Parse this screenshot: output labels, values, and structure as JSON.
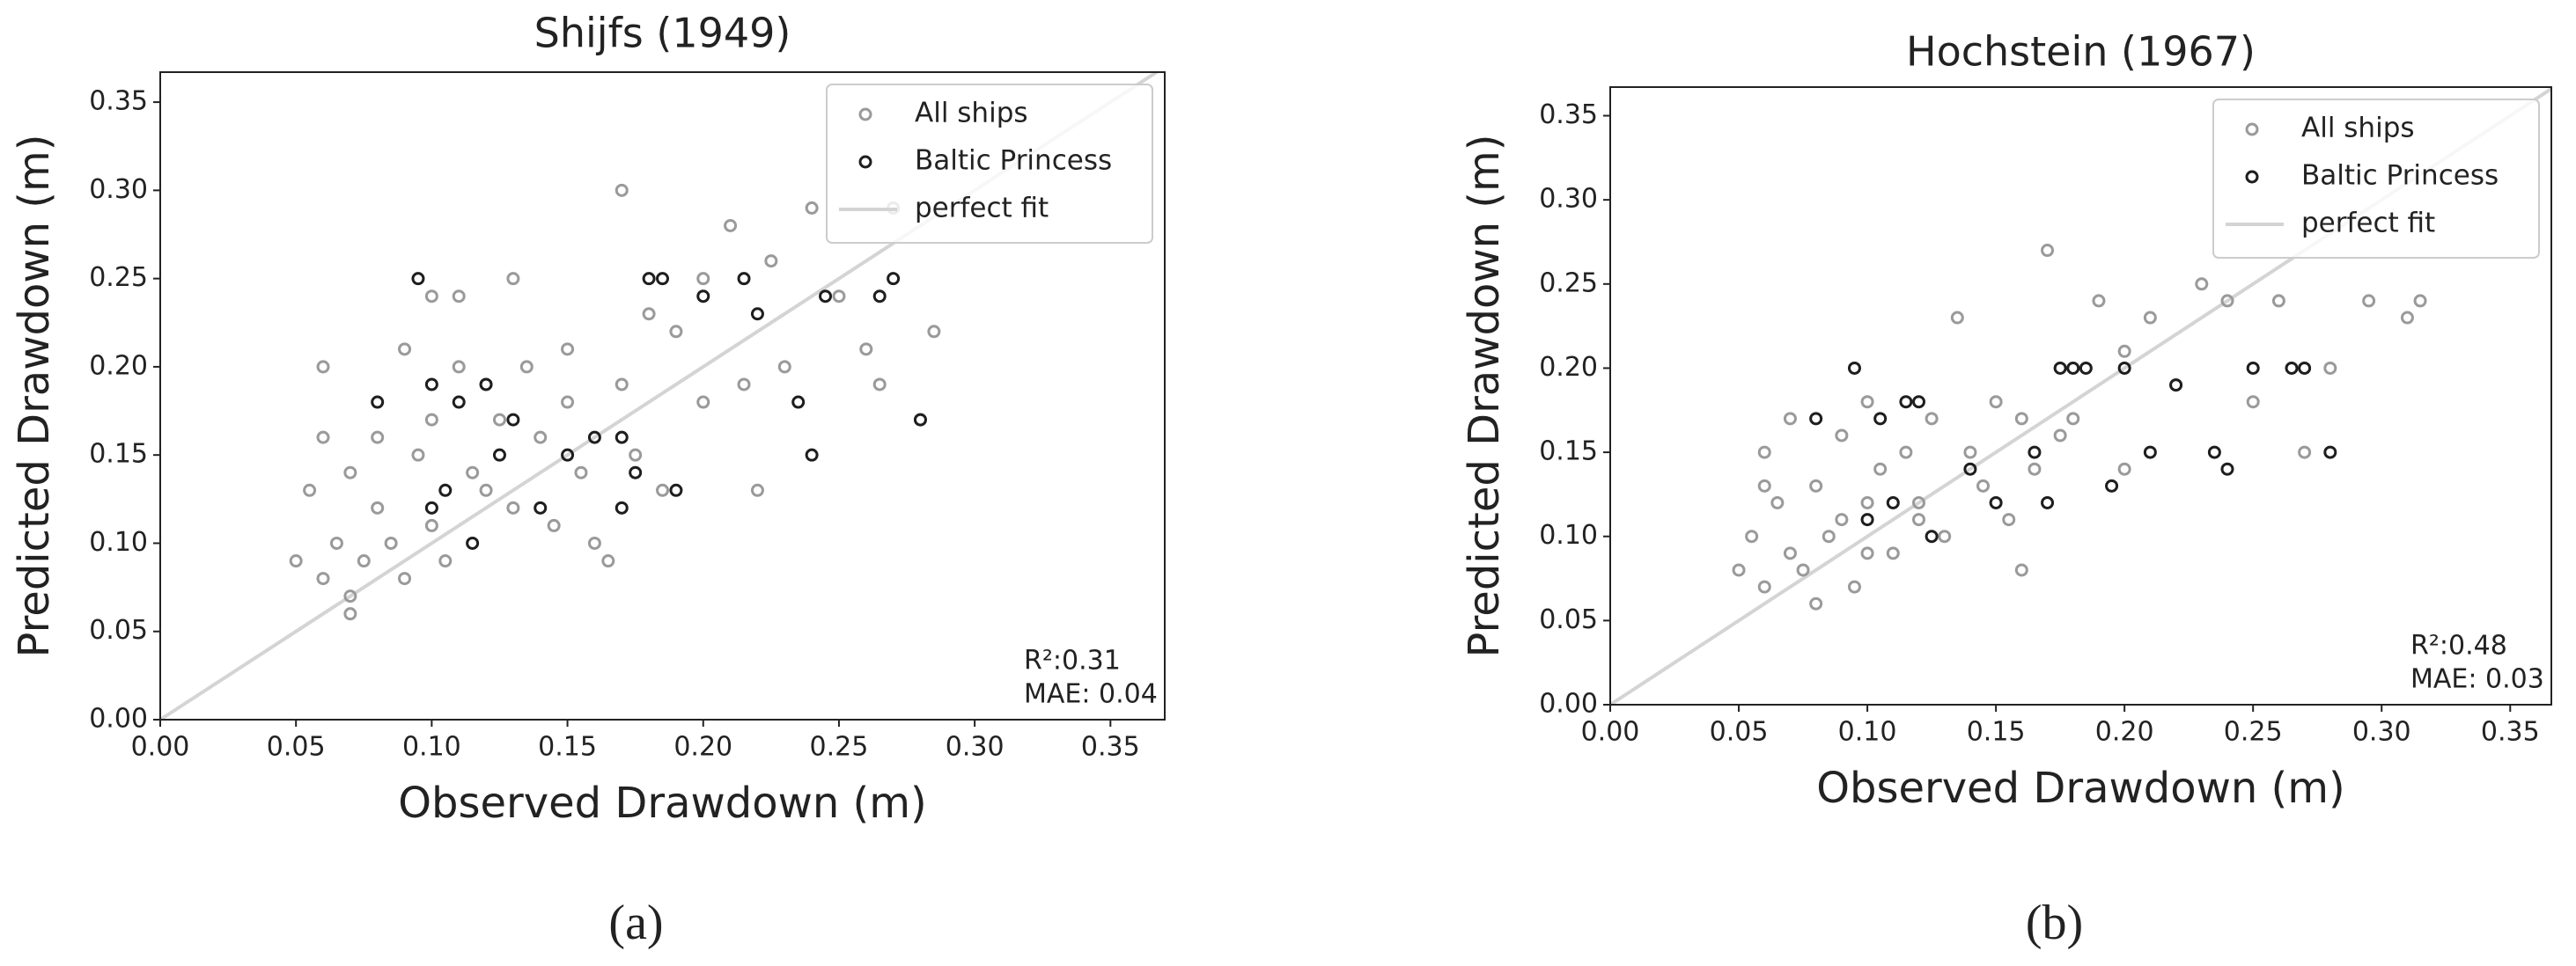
{
  "chart_data": [
    {
      "type": "scatter",
      "title": "Shijfs (1949)",
      "x_label": "Observed Drawdown (m)",
      "y_label": "Predicted Drawdown (m)",
      "xlim": [
        0,
        0.37
      ],
      "ylim": [
        0,
        0.367
      ],
      "xticks": [
        {
          "value": 0,
          "label": "0.00"
        },
        {
          "value": 0.05,
          "label": "0.05"
        },
        {
          "value": 0.1,
          "label": "0.10"
        },
        {
          "value": 0.15,
          "label": "0.15"
        },
        {
          "value": 0.2,
          "label": "0.20"
        },
        {
          "value": 0.25,
          "label": "0.25"
        },
        {
          "value": 0.3,
          "label": "0.30"
        },
        {
          "value": 0.35,
          "label": "0.35"
        }
      ],
      "yticks": [
        {
          "value": 0,
          "label": "0.00"
        },
        {
          "value": 0.05,
          "label": "0.05"
        },
        {
          "value": 0.1,
          "label": "0.10"
        },
        {
          "value": 0.15,
          "label": "0.15"
        },
        {
          "value": 0.2,
          "label": "0.20"
        },
        {
          "value": 0.25,
          "label": "0.25"
        },
        {
          "value": 0.3,
          "label": "0.30"
        },
        {
          "value": 0.35,
          "label": "0.35"
        }
      ],
      "legend": "upper right",
      "series": [
        {
          "name": "All ships",
          "color": "#9a9a9a",
          "x": [
            0.05,
            0.055,
            0.06,
            0.06,
            0.065,
            0.07,
            0.07,
            0.075,
            0.08,
            0.085,
            0.09,
            0.09,
            0.095,
            0.1,
            0.1,
            0.105,
            0.11,
            0.115,
            0.12,
            0.12,
            0.125,
            0.13,
            0.13,
            0.135,
            0.14,
            0.145,
            0.15,
            0.15,
            0.155,
            0.16,
            0.165,
            0.17,
            0.17,
            0.175,
            0.18,
            0.185,
            0.19,
            0.2,
            0.2,
            0.21,
            0.215,
            0.22,
            0.225,
            0.23,
            0.24,
            0.25,
            0.26,
            0.265,
            0.27,
            0.28,
            0.285,
            0.06,
            0.07,
            0.08,
            0.1,
            0.11
          ],
          "y": [
            0.09,
            0.13,
            0.16,
            0.08,
            0.1,
            0.14,
            0.07,
            0.09,
            0.12,
            0.1,
            0.21,
            0.08,
            0.15,
            0.17,
            0.11,
            0.09,
            0.2,
            0.14,
            0.13,
            0.19,
            0.17,
            0.25,
            0.12,
            0.2,
            0.16,
            0.11,
            0.18,
            0.21,
            0.14,
            0.1,
            0.09,
            0.3,
            0.19,
            0.15,
            0.23,
            0.13,
            0.22,
            0.25,
            0.18,
            0.28,
            0.19,
            0.13,
            0.26,
            0.2,
            0.29,
            0.24,
            0.21,
            0.19,
            0.29,
            0.17,
            0.22,
            0.2,
            0.06,
            0.16,
            0.24,
            0.24
          ]
        },
        {
          "name": "Baltic Princess",
          "color": "#1e1e1e",
          "x": [
            0.08,
            0.095,
            0.1,
            0.1,
            0.105,
            0.11,
            0.115,
            0.12,
            0.125,
            0.13,
            0.14,
            0.15,
            0.16,
            0.17,
            0.17,
            0.175,
            0.18,
            0.185,
            0.19,
            0.2,
            0.215,
            0.22,
            0.235,
            0.24,
            0.245,
            0.265,
            0.27,
            0.28
          ],
          "y": [
            0.18,
            0.25,
            0.12,
            0.19,
            0.13,
            0.18,
            0.1,
            0.19,
            0.15,
            0.17,
            0.12,
            0.15,
            0.16,
            0.12,
            0.16,
            0.14,
            0.25,
            0.25,
            0.13,
            0.24,
            0.25,
            0.23,
            0.18,
            0.15,
            0.24,
            0.24,
            0.25,
            0.17
          ]
        }
      ],
      "fit_line": {
        "name": "perfect fit",
        "color": "#d4d4d4"
      },
      "annotation": [
        "R²:0.31",
        "MAE: 0.04"
      ],
      "subplot_label": "(a)"
    },
    {
      "type": "scatter",
      "title": "Hochstein (1967)",
      "x_label": "Observed Drawdown (m)",
      "y_label": "Predicted Drawdown (m)",
      "xlim": [
        0,
        0.366
      ],
      "ylim": [
        0,
        0.367
      ],
      "xticks": [
        {
          "value": 0,
          "label": "0.00"
        },
        {
          "value": 0.05,
          "label": "0.05"
        },
        {
          "value": 0.1,
          "label": "0.10"
        },
        {
          "value": 0.15,
          "label": "0.15"
        },
        {
          "value": 0.2,
          "label": "0.20"
        },
        {
          "value": 0.25,
          "label": "0.25"
        },
        {
          "value": 0.3,
          "label": "0.30"
        },
        {
          "value": 0.35,
          "label": "0.35"
        }
      ],
      "yticks": [
        {
          "value": 0,
          "label": "0.00"
        },
        {
          "value": 0.05,
          "label": "0.05"
        },
        {
          "value": 0.1,
          "label": "0.10"
        },
        {
          "value": 0.15,
          "label": "0.15"
        },
        {
          "value": 0.2,
          "label": "0.20"
        },
        {
          "value": 0.25,
          "label": "0.25"
        },
        {
          "value": 0.3,
          "label": "0.30"
        },
        {
          "value": 0.35,
          "label": "0.35"
        }
      ],
      "legend": "upper right",
      "series": [
        {
          "name": "All ships",
          "color": "#9a9a9a",
          "x": [
            0.05,
            0.055,
            0.06,
            0.06,
            0.065,
            0.07,
            0.07,
            0.075,
            0.08,
            0.085,
            0.09,
            0.09,
            0.095,
            0.1,
            0.1,
            0.105,
            0.11,
            0.115,
            0.12,
            0.125,
            0.13,
            0.135,
            0.14,
            0.145,
            0.15,
            0.155,
            0.16,
            0.165,
            0.17,
            0.175,
            0.18,
            0.19,
            0.2,
            0.2,
            0.21,
            0.22,
            0.23,
            0.24,
            0.25,
            0.26,
            0.27,
            0.28,
            0.295,
            0.31,
            0.315,
            0.06,
            0.08,
            0.1,
            0.12,
            0.16
          ],
          "y": [
            0.08,
            0.1,
            0.15,
            0.07,
            0.12,
            0.09,
            0.17,
            0.08,
            0.13,
            0.1,
            0.11,
            0.16,
            0.07,
            0.18,
            0.12,
            0.14,
            0.09,
            0.15,
            0.12,
            0.17,
            0.1,
            0.23,
            0.15,
            0.13,
            0.18,
            0.11,
            0.08,
            0.14,
            0.27,
            0.16,
            0.17,
            0.24,
            0.21,
            0.14,
            0.23,
            0.19,
            0.25,
            0.24,
            0.18,
            0.24,
            0.15,
            0.2,
            0.24,
            0.23,
            0.24,
            0.13,
            0.06,
            0.09,
            0.11,
            0.17
          ]
        },
        {
          "name": "Baltic Princess",
          "color": "#1e1e1e",
          "x": [
            0.08,
            0.095,
            0.1,
            0.105,
            0.11,
            0.115,
            0.12,
            0.125,
            0.14,
            0.15,
            0.165,
            0.17,
            0.175,
            0.18,
            0.185,
            0.195,
            0.2,
            0.21,
            0.22,
            0.235,
            0.24,
            0.25,
            0.265,
            0.27,
            0.28
          ],
          "y": [
            0.17,
            0.2,
            0.11,
            0.17,
            0.12,
            0.18,
            0.18,
            0.1,
            0.14,
            0.12,
            0.15,
            0.12,
            0.2,
            0.2,
            0.2,
            0.13,
            0.2,
            0.15,
            0.19,
            0.15,
            0.14,
            0.2,
            0.2,
            0.2,
            0.15
          ]
        }
      ],
      "fit_line": {
        "name": "perfect fit",
        "color": "#d4d4d4"
      },
      "annotation": [
        "R²:0.48",
        "MAE: 0.03"
      ],
      "subplot_label": "(b)"
    }
  ]
}
